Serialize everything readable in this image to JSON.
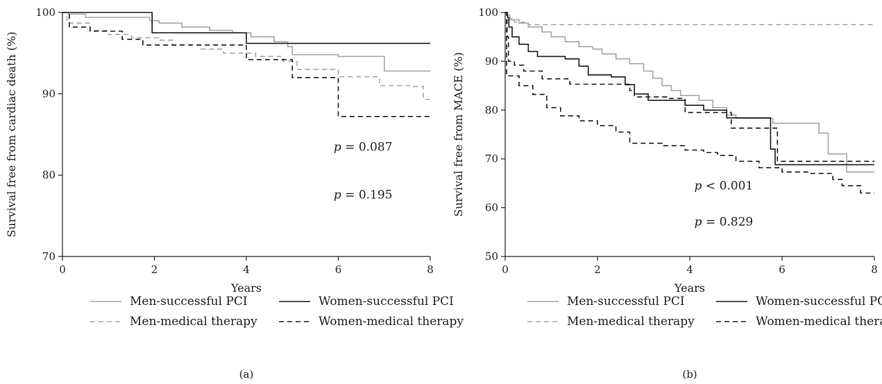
{
  "chart_data": [
    {
      "type": "line",
      "panel_label": "(a)",
      "title": "",
      "xlabel": "Years",
      "ylabel": "Survival free from cardiac death (%)",
      "xlim": [
        0,
        8
      ],
      "ylim": [
        70,
        100
      ],
      "xticks": [
        0,
        2,
        4,
        6,
        8
      ],
      "yticks": [
        70,
        80,
        90,
        100
      ],
      "step": true,
      "legend_position": "bottom",
      "annotations": [
        {
          "text": "p = 0.087",
          "x": 5.9,
          "y": 83
        },
        {
          "text": "p = 0.195",
          "x": 5.9,
          "y": 77.1
        }
      ],
      "series": [
        {
          "name": "Men-successful PCI",
          "color": "#a6a6a6",
          "dash": "solid",
          "points": [
            [
              0,
              100
            ],
            [
              0.12,
              99.8
            ],
            [
              0.5,
              99.4
            ],
            [
              1.9,
              99.0
            ],
            [
              2.1,
              98.7
            ],
            [
              2.6,
              98.2
            ],
            [
              3.2,
              97.8
            ],
            [
              3.7,
              97.5
            ],
            [
              4.1,
              97.0
            ],
            [
              4.6,
              96.4
            ],
            [
              4.9,
              95.8
            ],
            [
              5.0,
              94.8
            ],
            [
              6.0,
              94.6
            ],
            [
              7.0,
              92.8
            ],
            [
              8,
              92.8
            ]
          ]
        },
        {
          "name": "Women-successful PCI",
          "color": "#1a1a1a",
          "dash": "solid",
          "points": [
            [
              0,
              100
            ],
            [
              1.9,
              100
            ],
            [
              1.95,
              97.5
            ],
            [
              3.95,
              97.5
            ],
            [
              4.0,
              96.2
            ],
            [
              8,
              96.2
            ]
          ]
        },
        {
          "name": "Men-medical therapy",
          "color": "#a6a6a6",
          "dash": "dashed",
          "points": [
            [
              0,
              100
            ],
            [
              0.1,
              98.7
            ],
            [
              0.6,
              97.8
            ],
            [
              1.0,
              97.3
            ],
            [
              1.5,
              96.9
            ],
            [
              2.1,
              96.6
            ],
            [
              2.4,
              96.0
            ],
            [
              3.0,
              95.5
            ],
            [
              3.5,
              95.0
            ],
            [
              4.2,
              94.6
            ],
            [
              4.8,
              94.0
            ],
            [
              5.1,
              93.0
            ],
            [
              6.0,
              92.1
            ],
            [
              6.9,
              91.0
            ],
            [
              7.6,
              90.9
            ],
            [
              7.85,
              89.3
            ],
            [
              8,
              89.3
            ]
          ]
        },
        {
          "name": "Women-medical therapy",
          "color": "#1a1a1a",
          "dash": "dashed",
          "points": [
            [
              0,
              100
            ],
            [
              0.15,
              98.2
            ],
            [
              0.6,
              97.7
            ],
            [
              1.3,
              96.7
            ],
            [
              1.75,
              96.0
            ],
            [
              2.8,
              96.0
            ],
            [
              3.95,
              96.0
            ],
            [
              4.0,
              94.2
            ],
            [
              5.0,
              92.0
            ],
            [
              6.0,
              87.2
            ],
            [
              8,
              87.2
            ]
          ]
        }
      ]
    },
    {
      "type": "line",
      "panel_label": "(b)",
      "title": "",
      "xlabel": "Years",
      "ylabel": "Survival free from MACE (%)",
      "xlim": [
        0,
        8
      ],
      "ylim": [
        50,
        100
      ],
      "xticks": [
        0,
        2,
        4,
        6,
        8
      ],
      "yticks": [
        50,
        60,
        70,
        80,
        90,
        100
      ],
      "step": true,
      "legend_position": "bottom",
      "annotations": [
        {
          "text": "p < 0.001",
          "x": 4.1,
          "y": 63.7
        },
        {
          "text": "p = 0.829",
          "x": 4.1,
          "y": 56.3
        }
      ],
      "series": [
        {
          "name": "Men-successful PCI",
          "color": "#a6a6a6",
          "dash": "solid",
          "points": [
            [
              0,
              100
            ],
            [
              0.05,
              99.5
            ],
            [
              0.1,
              98.5
            ],
            [
              0.3,
              97.8
            ],
            [
              0.5,
              97.0
            ],
            [
              0.8,
              96.0
            ],
            [
              1.0,
              95.0
            ],
            [
              1.3,
              94.0
            ],
            [
              1.6,
              93.0
            ],
            [
              1.9,
              92.5
            ],
            [
              2.1,
              91.5
            ],
            [
              2.4,
              90.5
            ],
            [
              2.7,
              89.5
            ],
            [
              3.0,
              88.0
            ],
            [
              3.2,
              86.5
            ],
            [
              3.4,
              85.0
            ],
            [
              3.6,
              84.0
            ],
            [
              3.8,
              83.0
            ],
            [
              4.2,
              82.0
            ],
            [
              4.5,
              80.5
            ],
            [
              4.8,
              79.0
            ],
            [
              5.0,
              78.3
            ],
            [
              5.8,
              77.3
            ],
            [
              6.8,
              75.3
            ],
            [
              7.0,
              71.0
            ],
            [
              7.4,
              67.3
            ],
            [
              8,
              67.3
            ]
          ]
        },
        {
          "name": "Women-successful PCI",
          "color": "#1a1a1a",
          "dash": "solid",
          "points": [
            [
              0,
              100
            ],
            [
              0.05,
              99.0
            ],
            [
              0.08,
              97.0
            ],
            [
              0.15,
              95.0
            ],
            [
              0.3,
              93.5
            ],
            [
              0.5,
              92.0
            ],
            [
              0.7,
              91.0
            ],
            [
              1.3,
              90.5
            ],
            [
              1.6,
              89.0
            ],
            [
              1.8,
              87.2
            ],
            [
              2.3,
              86.8
            ],
            [
              2.6,
              85.2
            ],
            [
              2.8,
              83.3
            ],
            [
              3.1,
              82.0
            ],
            [
              3.9,
              81.0
            ],
            [
              4.3,
              80.0
            ],
            [
              4.8,
              78.4
            ],
            [
              5.7,
              78.4
            ],
            [
              5.75,
              72.0
            ],
            [
              5.85,
              68.8
            ],
            [
              8,
              68.8
            ]
          ]
        },
        {
          "name": "Men-medical therapy",
          "color": "#a6a6a6",
          "dash": "dashed",
          "points": [
            [
              0,
              100
            ],
            [
              0.06,
              99.5
            ],
            [
              0.1,
              98.8
            ],
            [
              0.2,
              98.0
            ],
            [
              0.5,
              97.5
            ],
            [
              8,
              97.5
            ]
          ]
        },
        {
          "name": "Women-medical therapy",
          "color": "#1a1a1a",
          "dash": "dashed",
          "points": [
            [
              0,
              100
            ],
            [
              0.04,
              95.0
            ],
            [
              0.07,
              90.0
            ],
            [
              0.2,
              89.2
            ],
            [
              0.4,
              88.0
            ],
            [
              0.8,
              86.4
            ],
            [
              1.4,
              85.3
            ],
            [
              2.7,
              84.0
            ],
            [
              2.8,
              82.7
            ],
            [
              3.5,
              82.4
            ],
            [
              3.9,
              79.5
            ],
            [
              4.9,
              76.3
            ],
            [
              5.9,
              69.5
            ],
            [
              8,
              69.5
            ]
          ]
        },
        {
          "name": "Women-medical therapy (lower)",
          "color": "#1a1a1a",
          "dash": "dashed",
          "legend": false,
          "points": [
            [
              0,
              100
            ],
            [
              0.03,
              87.0
            ],
            [
              0.3,
              85.0
            ],
            [
              0.6,
              83.2
            ],
            [
              0.9,
              80.5
            ],
            [
              1.2,
              78.8
            ],
            [
              1.6,
              77.8
            ],
            [
              2.0,
              76.8
            ],
            [
              2.4,
              75.5
            ],
            [
              2.7,
              73.2
            ],
            [
              3.4,
              72.7
            ],
            [
              3.9,
              71.8
            ],
            [
              4.3,
              71.3
            ],
            [
              4.6,
              70.7
            ],
            [
              5.0,
              69.5
            ],
            [
              5.5,
              68.2
            ],
            [
              6.0,
              67.3
            ],
            [
              6.6,
              67.0
            ],
            [
              7.1,
              65.8
            ],
            [
              7.3,
              64.5
            ],
            [
              7.7,
              63.0
            ],
            [
              8,
              63.0
            ]
          ]
        }
      ]
    }
  ]
}
